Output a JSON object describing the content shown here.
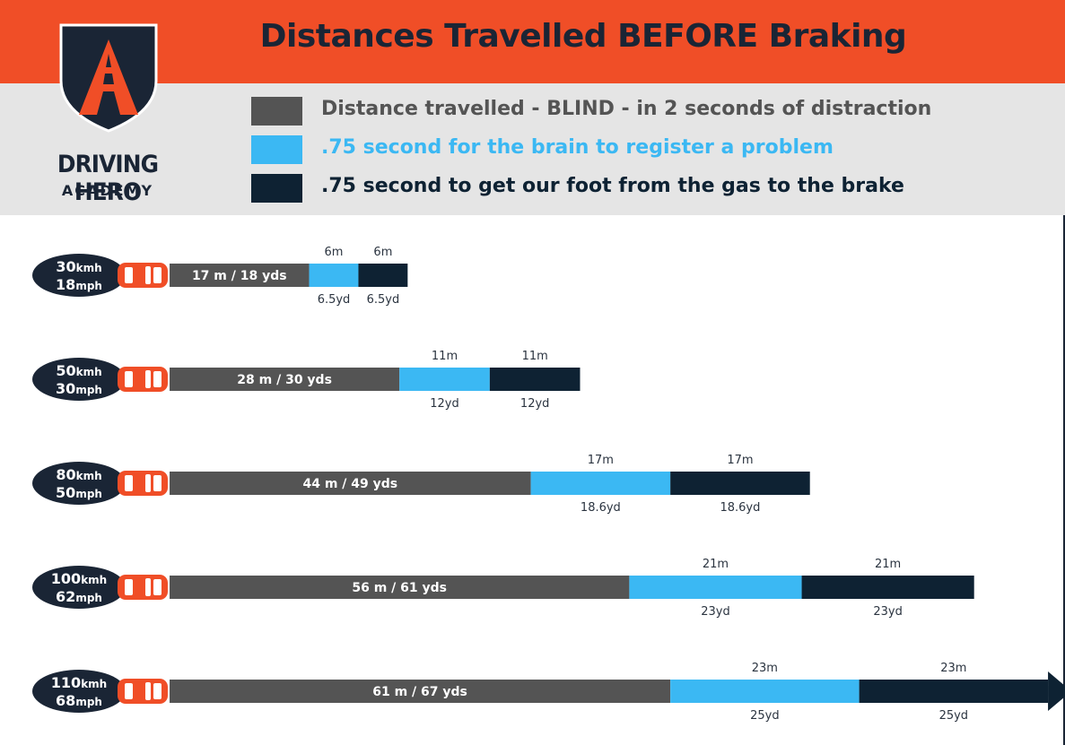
{
  "header": {
    "title": "Distances Travelled BEFORE Braking"
  },
  "logo": {
    "name": "DRIVING HERO",
    "sub": "ACADEMY"
  },
  "legend": [
    {
      "label": "Distance travelled - BLIND - in 2 seconds of distraction",
      "color": "#545454",
      "text_color": "#545454"
    },
    {
      "label": ".75 second for the brain to register a problem",
      "color": "#3bb8f3",
      "text_color": "#3bb8f3"
    },
    {
      "label": ".75 second to get our foot from the gas to the brake",
      "color": "#0e2233",
      "text_color": "#0e2233"
    }
  ],
  "chart_data": {
    "type": "bar",
    "orientation": "horizontal",
    "stacked": true,
    "unit": "m",
    "series": [
      {
        "name": "Distance travelled - BLIND - in 2 seconds of distraction",
        "color": "#545454"
      },
      {
        "name": ".75 second for the brain to register a problem",
        "color": "#3bb8f3"
      },
      {
        "name": ".75 second to get our foot from the gas to the brake",
        "color": "#0e2233"
      }
    ],
    "rows": [
      {
        "kmh": "30",
        "mph": "18",
        "values": [
          17,
          6,
          6
        ],
        "labels": {
          "blind": "17 m / 18 yds",
          "brain_m": "6m",
          "brain_yd": "6.5yd",
          "foot_m": "6m",
          "foot_yd": "6.5yd"
        }
      },
      {
        "kmh": "50",
        "mph": "30",
        "values": [
          28,
          11,
          11
        ],
        "labels": {
          "blind": "28 m / 30 yds",
          "brain_m": "11m",
          "brain_yd": "12yd",
          "foot_m": "11m",
          "foot_yd": "12yd"
        }
      },
      {
        "kmh": "80",
        "mph": "50",
        "values": [
          44,
          17,
          17
        ],
        "labels": {
          "blind": "44 m / 49 yds",
          "brain_m": "17m",
          "brain_yd": "18.6yd",
          "foot_m": "17m",
          "foot_yd": "18.6yd"
        }
      },
      {
        "kmh": "100",
        "mph": "62",
        "values": [
          56,
          21,
          21
        ],
        "labels": {
          "blind": "56 m / 61 yds",
          "brain_m": "21m",
          "brain_yd": "23yd",
          "foot_m": "21m",
          "foot_yd": "23yd"
        }
      },
      {
        "kmh": "110",
        "mph": "68",
        "values": [
          61,
          23,
          23
        ],
        "overflow_arrow": true,
        "labels": {
          "blind": "61 m / 67 yds",
          "brain_m": "23m",
          "brain_yd": "25yd",
          "foot_m": "23m",
          "foot_yd": "25yd"
        }
      }
    ],
    "speed_units": {
      "kmh": "kmh",
      "mph": "mph"
    }
  }
}
